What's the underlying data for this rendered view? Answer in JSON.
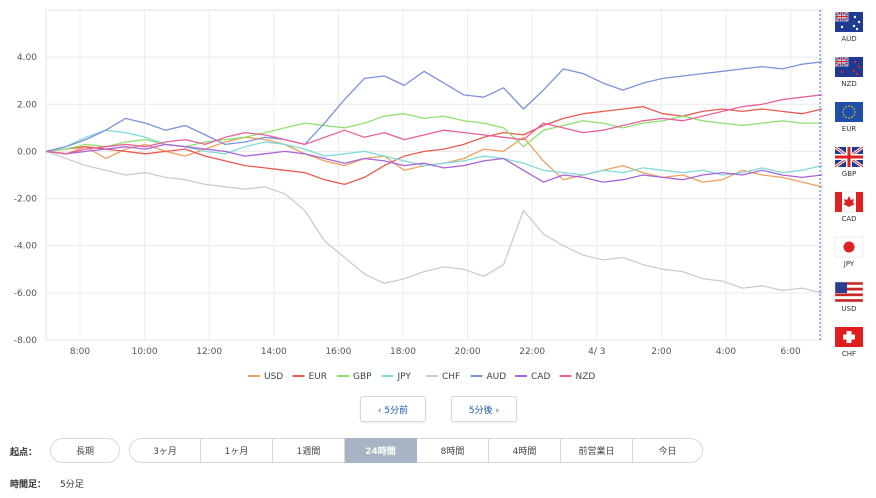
{
  "chart_data": {
    "type": "line",
    "x_labels": [
      "8:00",
      "10:00",
      "12:00",
      "14:00",
      "16:00",
      "18:00",
      "20:00",
      "22:00",
      "4/ 3",
      "2:00",
      "4:00",
      "6:00"
    ],
    "y_ticks": [
      "4.00",
      "2.00",
      "0.00",
      "-2.00",
      "-4.00",
      "-6.00",
      "-8.00"
    ],
    "ylim": [
      -8,
      6
    ],
    "legend_position": "bottom",
    "grid": true,
    "series": [
      {
        "name": "USD",
        "color": "#f0a060",
        "values": [
          0,
          -0.1,
          0.2,
          -0.3,
          0.1,
          0.3,
          0,
          -0.2,
          0.1,
          0.4,
          0.6,
          0.5,
          0.3,
          -0.1,
          -0.4,
          -0.6,
          -0.3,
          -0.2,
          -0.8,
          -0.6,
          -0.5,
          -0.3,
          0.1,
          0,
          0.6,
          -0.4,
          -1.2,
          -1,
          -0.8,
          -0.6,
          -0.9,
          -1.1,
          -1,
          -1.3,
          -1.2,
          -0.8,
          -1,
          -1.1,
          -1.3,
          -1.5
        ]
      },
      {
        "name": "EUR",
        "color": "#e85a4f",
        "values": [
          0,
          0.1,
          0.2,
          0.1,
          0,
          -0.1,
          0,
          0.1,
          -0.2,
          -0.4,
          -0.6,
          -0.7,
          -0.8,
          -0.9,
          -1.2,
          -1.4,
          -1.1,
          -0.6,
          -0.2,
          0,
          0.1,
          0.3,
          0.6,
          0.8,
          0.7,
          1.1,
          1.4,
          1.6,
          1.7,
          1.8,
          1.9,
          1.6,
          1.5,
          1.7,
          1.8,
          1.7,
          1.8,
          1.7,
          1.6,
          1.8
        ]
      },
      {
        "name": "GBP",
        "color": "#90e070",
        "values": [
          0,
          0.1,
          0.3,
          0.2,
          0.4,
          0.5,
          0.3,
          0.2,
          0.4,
          0.5,
          0.6,
          0.8,
          1,
          1.2,
          1.1,
          1,
          1.2,
          1.5,
          1.6,
          1.4,
          1.5,
          1.3,
          1.2,
          1,
          0.2,
          0.9,
          1.1,
          1.3,
          1.2,
          1,
          1.2,
          1.3,
          1.5,
          1.3,
          1.2,
          1.1,
          1.2,
          1.3,
          1.2,
          1.2
        ]
      },
      {
        "name": "JPY",
        "color": "#80dad8",
        "values": [
          0,
          0.2,
          0.6,
          0.9,
          0.8,
          0.6,
          0.3,
          0.2,
          0,
          -0.1,
          0.2,
          0.4,
          0.3,
          0.1,
          -0.2,
          -0.1,
          0,
          -0.2,
          -0.4,
          -0.6,
          -0.5,
          -0.4,
          -0.2,
          -0.3,
          -0.5,
          -0.8,
          -0.9,
          -1,
          -0.8,
          -0.9,
          -0.7,
          -0.8,
          -0.9,
          -0.8,
          -1,
          -0.9,
          -0.7,
          -0.9,
          -0.8,
          -0.6
        ]
      },
      {
        "name": "CHF",
        "color": "#cccccc",
        "values": [
          0,
          -0.3,
          -0.6,
          -0.8,
          -1,
          -0.9,
          -1.1,
          -1.2,
          -1.4,
          -1.5,
          -1.6,
          -1.5,
          -1.8,
          -2.5,
          -3.8,
          -4.5,
          -5.2,
          -5.6,
          -5.4,
          -5.1,
          -4.9,
          -5,
          -5.3,
          -4.8,
          -2.5,
          -3.5,
          -4,
          -4.4,
          -4.6,
          -4.5,
          -4.8,
          -5,
          -5.1,
          -5.4,
          -5.5,
          -5.8,
          -5.7,
          -5.9,
          -5.8,
          -6
        ]
      },
      {
        "name": "AUD",
        "color": "#7b93db",
        "values": [
          0,
          0.2,
          0.5,
          0.9,
          1.4,
          1.2,
          0.9,
          1.1,
          0.7,
          0.3,
          0.4,
          0.6,
          0.5,
          0.3,
          1.2,
          2.2,
          3.1,
          3.2,
          2.8,
          3.4,
          2.9,
          2.4,
          2.3,
          2.7,
          1.8,
          2.6,
          3.5,
          3.3,
          2.9,
          2.6,
          2.9,
          3.1,
          3.2,
          3.3,
          3.4,
          3.5,
          3.6,
          3.5,
          3.7,
          3.8
        ]
      },
      {
        "name": "CAD",
        "color": "#a765d6",
        "values": [
          0,
          -0.1,
          0,
          0.1,
          0.2,
          0.1,
          0.3,
          0.2,
          0.1,
          0,
          -0.2,
          -0.1,
          0,
          -0.1,
          -0.3,
          -0.5,
          -0.3,
          -0.4,
          -0.6,
          -0.5,
          -0.7,
          -0.6,
          -0.4,
          -0.3,
          -0.8,
          -1.3,
          -1,
          -1.1,
          -1.3,
          -1.2,
          -1,
          -1.1,
          -1.2,
          -1,
          -0.9,
          -1,
          -0.8,
          -1,
          -1.1,
          -1
        ]
      },
      {
        "name": "NZD",
        "color": "#e8609a",
        "values": [
          0,
          -0.1,
          0.1,
          0.2,
          0.3,
          0.2,
          0.4,
          0.5,
          0.3,
          0.6,
          0.8,
          0.7,
          0.5,
          0.3,
          0.6,
          0.9,
          0.6,
          0.8,
          0.5,
          0.7,
          0.9,
          0.8,
          0.7,
          0.6,
          0.5,
          1.2,
          1.0,
          0.8,
          0.9,
          1.1,
          1.3,
          1.4,
          1.3,
          1.5,
          1.7,
          1.9,
          2.0,
          2.2,
          2.3,
          2.4
        ]
      }
    ]
  },
  "flags": [
    {
      "code": "AUD",
      "icon": "australia-flag-icon"
    },
    {
      "code": "NZD",
      "icon": "new-zealand-flag-icon"
    },
    {
      "code": "EUR",
      "icon": "eu-flag-icon"
    },
    {
      "code": "GBP",
      "icon": "uk-flag-icon"
    },
    {
      "code": "CAD",
      "icon": "canada-flag-icon"
    },
    {
      "code": "JPY",
      "icon": "japan-flag-icon"
    },
    {
      "code": "USD",
      "icon": "usa-flag-icon"
    },
    {
      "code": "CHF",
      "icon": "switzerland-flag-icon"
    }
  ],
  "nav": {
    "prev": "‹ 5分前",
    "next": "5分後 ›"
  },
  "start": {
    "label": "起点：",
    "options": [
      "長期",
      "3ヶ月",
      "1ヶ月",
      "1週間",
      "24時間",
      "8時間",
      "4時間",
      "前営業日",
      "今日"
    ],
    "active": "24時間"
  },
  "timeframe": {
    "label": "時間足：",
    "value": "5分足"
  }
}
